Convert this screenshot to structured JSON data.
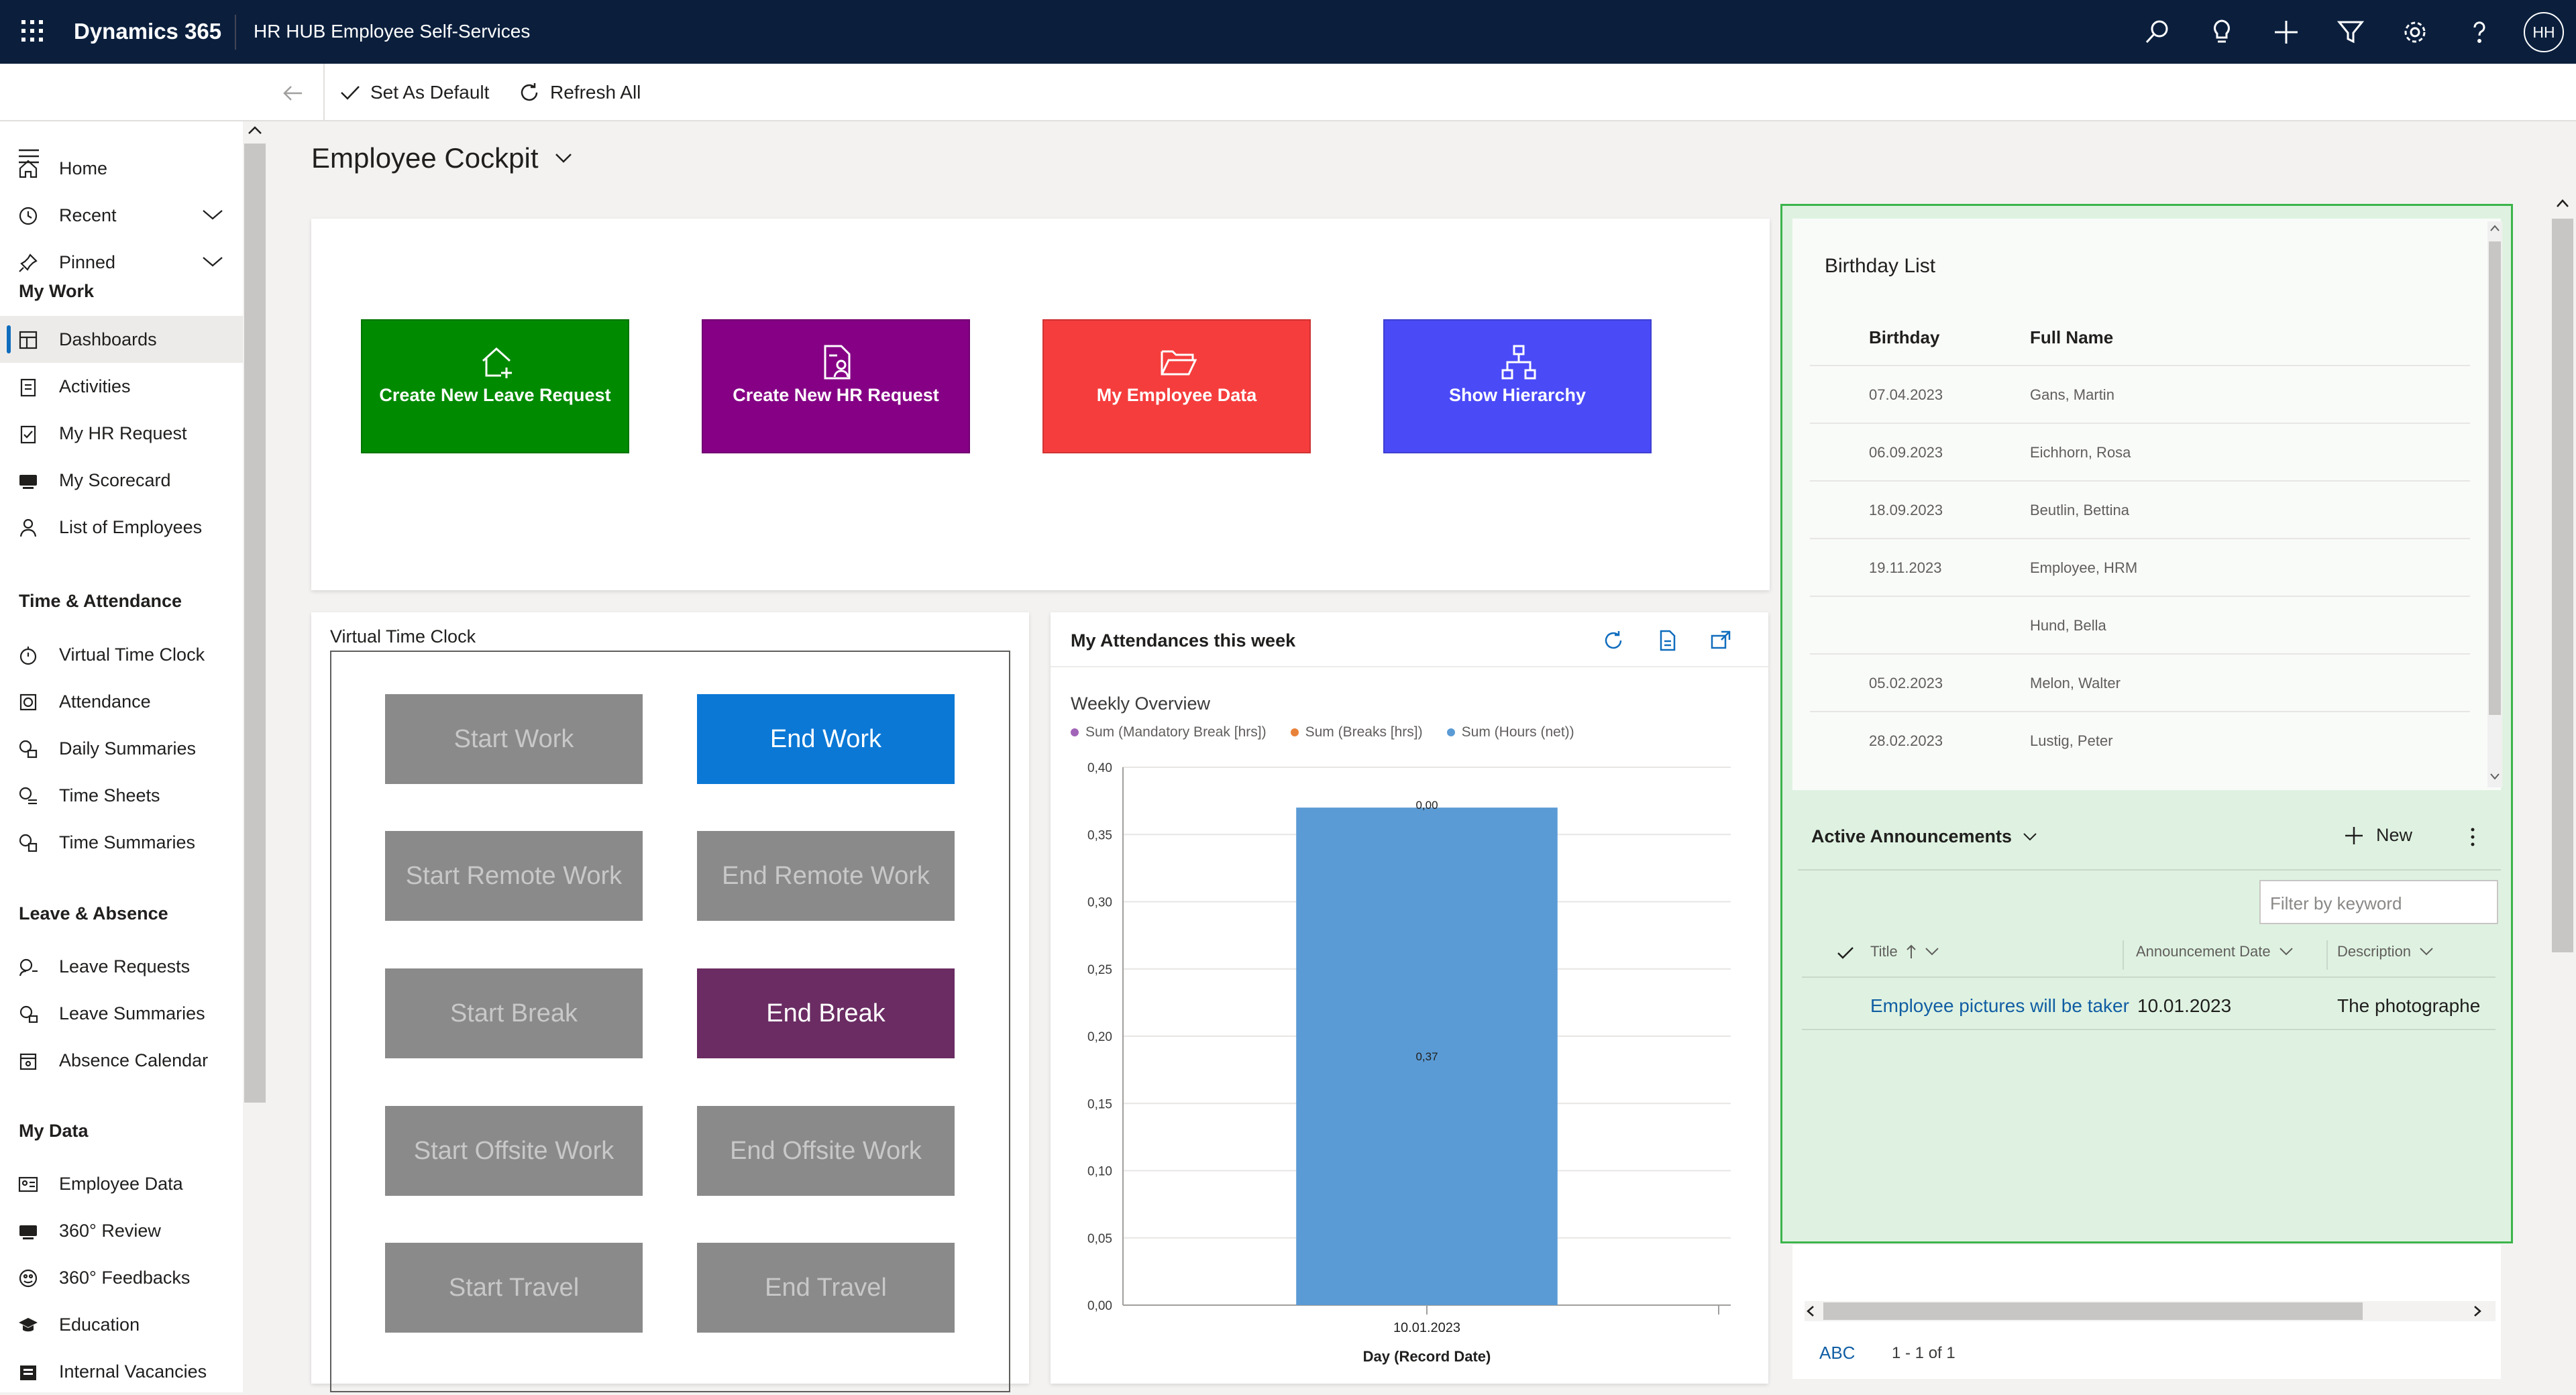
{
  "topbar": {
    "app_name": "Dynamics 365",
    "area_name": "HR HUB Employee Self-Services",
    "user_initials": "HH",
    "icons": [
      "search-icon",
      "lightbulb-icon",
      "plus-icon",
      "filter-icon",
      "gear-icon",
      "help-icon"
    ]
  },
  "command_bar": {
    "set_default": "Set As Default",
    "refresh_all": "Refresh All"
  },
  "nav": {
    "home": "Home",
    "recent": "Recent",
    "pinned": "Pinned",
    "my_work": "My Work",
    "dashboards": "Dashboards",
    "activities": "Activities",
    "my_hr_request": "My HR Request",
    "my_scorecard": "My Scorecard",
    "list_of_employees": "List of Employees",
    "time_attendance": "Time & Attendance",
    "virtual_time_clock": "Virtual Time Clock",
    "attendance": "Attendance",
    "daily_summaries": "Daily Summaries",
    "time_sheets": "Time Sheets",
    "time_summaries": "Time Summaries",
    "leave_absence": "Leave & Absence",
    "leave_requests": "Leave Requests",
    "leave_summaries": "Leave Summaries",
    "absence_calendar": "Absence Calendar",
    "my_data": "My Data",
    "employee_data": "Employee Data",
    "review_360": "360° Review",
    "feedbacks_360": "360° Feedbacks",
    "education": "Education",
    "internal_vacancies": "Internal Vacancies"
  },
  "page": {
    "title": "Employee Cockpit"
  },
  "tiles": {
    "leave": {
      "label": "Create New Leave Request",
      "color": "#008a00"
    },
    "hr": {
      "label": "Create New HR Request",
      "color": "#850085"
    },
    "employee_data": {
      "label": "My Employee Data",
      "color": "#f53d3d"
    },
    "hierarchy": {
      "label": "Show Hierarchy",
      "color": "#4a4af7"
    }
  },
  "vtc": {
    "title": "Virtual Time Clock",
    "start_work": "Start Work",
    "end_work": "End Work",
    "start_remote": "Start Remote Work",
    "end_remote": "End Remote Work",
    "start_break": "Start Break",
    "end_break": "End Break",
    "start_offsite": "Start Offsite Work",
    "end_offsite": "End Offsite Work",
    "start_travel": "Start Travel",
    "end_travel": "End Travel"
  },
  "attendance_card": {
    "title": "My Attendances this week",
    "chart_title": "Weekly Overview",
    "legend": [
      "Sum (Mandatory Break [hrs])",
      "Sum (Breaks [hrs])",
      "Sum (Hours (net))"
    ],
    "legend_colors": [
      "#a264b8",
      "#e8823a",
      "#5b9bd5"
    ]
  },
  "chart_data": {
    "type": "bar",
    "title": "Weekly Overview",
    "categories": [
      "10.01.2023"
    ],
    "xlabel": "Day (Record Date)",
    "ylabel": "",
    "ylim": [
      0,
      0.4
    ],
    "y_ticks": [
      "0,00",
      "0,05",
      "0,10",
      "0,15",
      "0,20",
      "0,25",
      "0,30",
      "0,35",
      "0,40"
    ],
    "series": [
      {
        "name": "Sum (Mandatory Break [hrs])",
        "values": [
          0.0
        ],
        "color": "#a264b8"
      },
      {
        "name": "Sum (Breaks [hrs])",
        "values": [
          0.0
        ],
        "color": "#e8823a"
      },
      {
        "name": "Sum (Hours (net))",
        "values": [
          0.37
        ],
        "color": "#5b9bd5"
      }
    ],
    "data_labels": {
      "top": "0,00",
      "mid": "0,37"
    },
    "legend_position": "top-left",
    "grid": true
  },
  "birthday": {
    "title": "Birthday List",
    "col_birthday": "Birthday",
    "col_name": "Full Name",
    "rows": [
      {
        "date": "07.04.2023",
        "name": "Gans, Martin"
      },
      {
        "date": "06.09.2023",
        "name": "Eichhorn, Rosa"
      },
      {
        "date": "18.09.2023",
        "name": "Beutlin, Bettina"
      },
      {
        "date": "19.11.2023",
        "name": "Employee, HRM"
      },
      {
        "date": "",
        "name": "Hund, Bella"
      },
      {
        "date": "05.02.2023",
        "name": "Melon, Walter"
      },
      {
        "date": "28.02.2023",
        "name": "Lustig, Peter"
      }
    ]
  },
  "announcements": {
    "title": "Active Announcements",
    "new_label": "New",
    "filter_placeholder": "Filter by keyword",
    "col_title": "Title",
    "col_date": "Announcement Date",
    "col_desc": "Description",
    "row_title": "Employee pictures will be taker",
    "row_date": "10.01.2023",
    "row_desc": "The photographe",
    "abc": "ABC",
    "paging": "1 - 1 of 1"
  }
}
